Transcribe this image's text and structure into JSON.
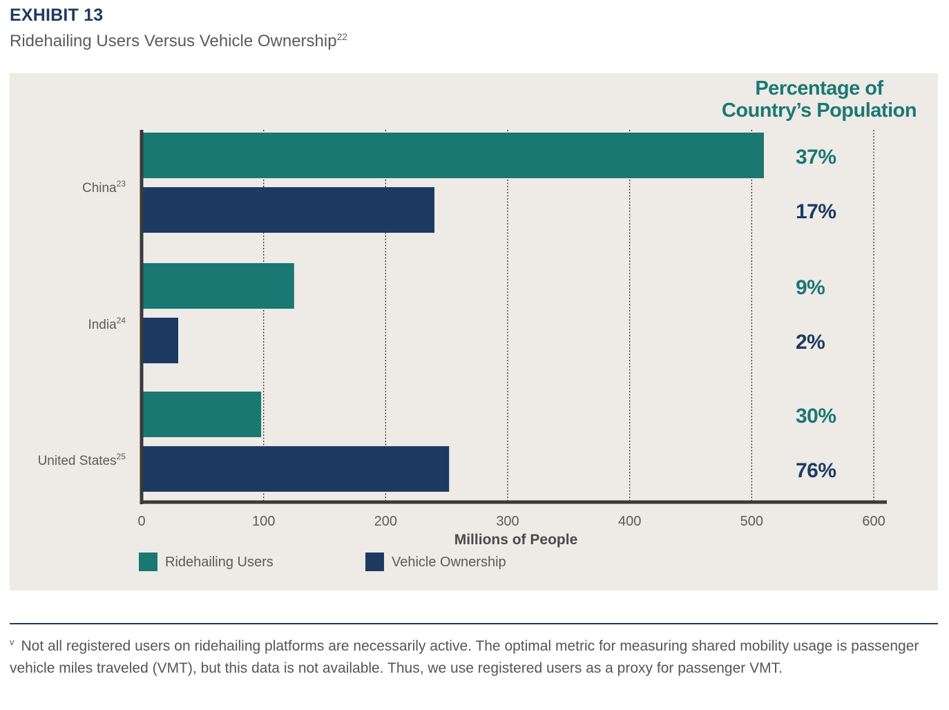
{
  "header": {
    "exhibit": "EXHIBIT 13",
    "subtitle": "Ridehailing Users Versus Vehicle Ownership",
    "subtitle_ref": "22"
  },
  "footnote": {
    "marker": "v",
    "text": "Not all registered users on ridehailing platforms are necessarily active. The optimal metric for measuring shared mobility usage is passenger vehicle miles traveled (VMT), but this data is not available. Thus, we use registered users as a proxy for passenger VMT."
  },
  "colors": {
    "ridehailing": "#1a7872",
    "vehicle": "#1d3a63",
    "panel": "#eeeae5",
    "axis": "#3a3a3a",
    "label": "#5b5b5b"
  },
  "chart_data": {
    "type": "bar",
    "orientation": "horizontal",
    "categories": [
      "China",
      "India",
      "United States"
    ],
    "category_refs": [
      "23",
      "24",
      "25"
    ],
    "series": [
      {
        "name": "Ridehailing Users",
        "values": [
          510,
          125,
          98
        ],
        "percent_labels": [
          "37%",
          "9%",
          "30%"
        ]
      },
      {
        "name": "Vehicle Ownership",
        "values": [
          240,
          30,
          252
        ],
        "percent_labels": [
          "17%",
          "2%",
          "76%"
        ]
      }
    ],
    "xlabel": "Millions of People",
    "xlim": [
      0,
      600
    ],
    "xticks": [
      "0",
      "100",
      "200",
      "300",
      "400",
      "500",
      "600"
    ],
    "percent_header": [
      "Percentage of",
      "Country’s Population"
    ],
    "grid": "vertical dotted",
    "legend": "bottom-left"
  }
}
